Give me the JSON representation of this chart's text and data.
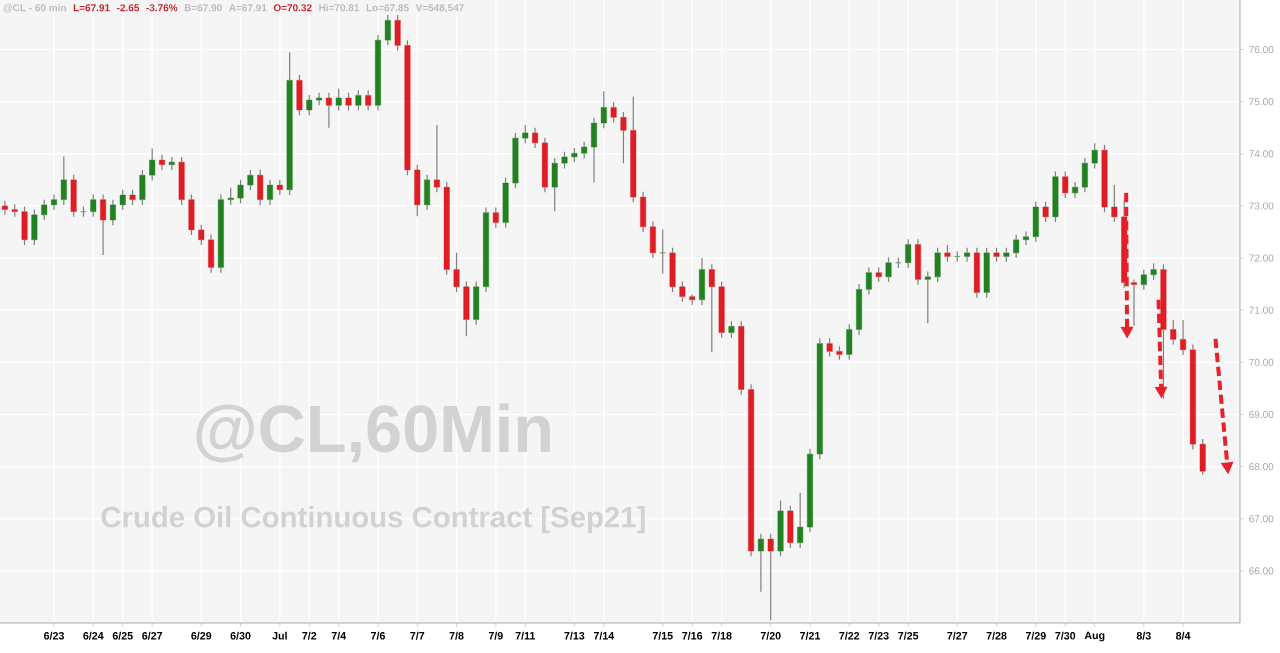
{
  "chart_data": {
    "type": "candlestick",
    "title": "@CL,60Min",
    "subtitle": "Crude Oil Continuous Contract [Sep21]",
    "annotations": [
      "@CL - 60 min",
      "L=67.91",
      "-2.65",
      "-3.76%",
      "B=67.90",
      "A=67.91",
      "O=70.32",
      "Hi=70.81",
      "Lo=67.85",
      "V=548,547"
    ],
    "categories": [
      null,
      null,
      null,
      null,
      null,
      "6/23",
      null,
      null,
      null,
      "6/24",
      null,
      null,
      "6/25",
      null,
      null,
      "6/27",
      null,
      null,
      null,
      null,
      "6/29",
      null,
      null,
      null,
      "6/30",
      null,
      null,
      null,
      "Jul",
      null,
      null,
      "7/2",
      null,
      null,
      "7/4",
      null,
      null,
      null,
      "7/6",
      null,
      null,
      null,
      "7/7",
      null,
      null,
      null,
      "7/8",
      null,
      null,
      null,
      "7/9",
      null,
      null,
      "7/11",
      null,
      null,
      null,
      null,
      "7/13",
      null,
      null,
      "7/14",
      null,
      null,
      null,
      null,
      null,
      "7/15",
      null,
      null,
      "7/16",
      null,
      null,
      "7/18",
      null,
      null,
      null,
      null,
      "7/20",
      null,
      null,
      null,
      "7/21",
      null,
      null,
      null,
      "7/22",
      null,
      null,
      "7/23",
      null,
      null,
      "7/25",
      null,
      null,
      null,
      null,
      "7/27",
      null,
      null,
      null,
      "7/28",
      null,
      null,
      null,
      "7/29",
      null,
      null,
      "7/30",
      null,
      null,
      "Aug",
      null,
      null,
      null,
      null,
      "8/3",
      null,
      null,
      null,
      "8/4",
      null,
      null
    ],
    "ohlc": [
      [
        73.0,
        73.1,
        72.83,
        72.93
      ],
      [
        72.93,
        73.03,
        72.79,
        72.89
      ],
      [
        72.89,
        72.99,
        72.25,
        72.35
      ],
      [
        72.35,
        72.93,
        72.25,
        72.83
      ],
      [
        72.83,
        73.12,
        72.73,
        73.02
      ],
      [
        73.02,
        73.22,
        72.92,
        73.12
      ],
      [
        73.12,
        73.95,
        73.02,
        73.5
      ],
      [
        73.5,
        73.6,
        72.79,
        72.89
      ],
      [
        72.89,
        72.99,
        72.79,
        72.89
      ],
      [
        72.89,
        73.22,
        72.79,
        73.12
      ],
      [
        73.12,
        73.22,
        72.06,
        72.73
      ],
      [
        72.73,
        73.12,
        72.63,
        73.02
      ],
      [
        73.02,
        73.31,
        72.92,
        73.21
      ],
      [
        73.21,
        73.31,
        73.02,
        73.12
      ],
      [
        73.12,
        73.69,
        73.02,
        73.59
      ],
      [
        73.59,
        74.1,
        73.49,
        73.88
      ],
      [
        73.88,
        73.98,
        73.69,
        73.79
      ],
      [
        73.79,
        73.94,
        73.69,
        73.84
      ],
      [
        73.84,
        73.94,
        73.02,
        73.12
      ],
      [
        73.12,
        73.22,
        72.44,
        72.54
      ],
      [
        72.54,
        72.64,
        72.25,
        72.35
      ],
      [
        72.35,
        72.45,
        71.72,
        71.82
      ],
      [
        71.82,
        73.22,
        71.72,
        73.12
      ],
      [
        73.12,
        73.35,
        73.02,
        73.15
      ],
      [
        73.15,
        73.5,
        73.05,
        73.4
      ],
      [
        73.4,
        73.69,
        73.3,
        73.59
      ],
      [
        73.59,
        73.69,
        73.02,
        73.12
      ],
      [
        73.12,
        73.5,
        73.02,
        73.4
      ],
      [
        73.4,
        73.5,
        73.21,
        73.31
      ],
      [
        73.31,
        75.95,
        73.21,
        75.41
      ],
      [
        75.41,
        75.51,
        74.74,
        74.84
      ],
      [
        74.84,
        75.13,
        74.74,
        75.03
      ],
      [
        75.03,
        75.17,
        74.93,
        75.07
      ],
      [
        75.07,
        75.17,
        74.5,
        74.93
      ],
      [
        74.93,
        75.25,
        74.83,
        75.07
      ],
      [
        75.07,
        75.17,
        74.83,
        74.93
      ],
      [
        74.93,
        75.22,
        74.83,
        75.12
      ],
      [
        75.12,
        75.22,
        74.83,
        74.93
      ],
      [
        74.93,
        76.28,
        74.83,
        76.18
      ],
      [
        76.18,
        76.66,
        76.08,
        76.56
      ],
      [
        76.56,
        76.66,
        75.98,
        76.08
      ],
      [
        76.08,
        76.18,
        73.59,
        73.69
      ],
      [
        73.69,
        73.79,
        72.8,
        73.02
      ],
      [
        73.02,
        73.6,
        72.92,
        73.5
      ],
      [
        73.5,
        74.55,
        73.26,
        73.36
      ],
      [
        73.36,
        73.46,
        71.68,
        71.78
      ],
      [
        71.78,
        72.1,
        71.35,
        71.45
      ],
      [
        71.45,
        71.55,
        70.5,
        70.82
      ],
      [
        70.82,
        71.55,
        70.72,
        71.45
      ],
      [
        71.45,
        72.97,
        71.35,
        72.87
      ],
      [
        72.87,
        72.97,
        72.58,
        72.68
      ],
      [
        72.68,
        73.54,
        72.58,
        73.44
      ],
      [
        73.44,
        74.4,
        73.34,
        74.3
      ],
      [
        74.3,
        74.55,
        74.2,
        74.4
      ],
      [
        74.4,
        74.5,
        74.11,
        74.21
      ],
      [
        74.21,
        74.31,
        73.26,
        73.36
      ],
      [
        73.36,
        73.92,
        72.9,
        73.82
      ],
      [
        73.82,
        74.04,
        73.72,
        73.94
      ],
      [
        73.94,
        74.11,
        73.84,
        74.01
      ],
      [
        74.01,
        74.23,
        73.91,
        74.13
      ],
      [
        74.13,
        74.69,
        73.45,
        74.59
      ],
      [
        74.59,
        75.2,
        74.49,
        74.89
      ],
      [
        74.89,
        74.99,
        74.6,
        74.7
      ],
      [
        74.7,
        74.8,
        73.82,
        74.45
      ],
      [
        74.45,
        75.1,
        73.07,
        73.17
      ],
      [
        73.17,
        73.27,
        72.5,
        72.6
      ],
      [
        72.6,
        72.7,
        72.0,
        72.1
      ],
      [
        72.1,
        72.55,
        71.7,
        72.1
      ],
      [
        72.1,
        72.2,
        71.35,
        71.45
      ],
      [
        71.45,
        71.55,
        71.16,
        71.26
      ],
      [
        71.26,
        71.3,
        71.1,
        71.2
      ],
      [
        71.2,
        72.0,
        71.1,
        71.78
      ],
      [
        71.78,
        71.88,
        70.2,
        71.45
      ],
      [
        71.45,
        71.55,
        70.47,
        70.57
      ],
      [
        70.57,
        70.79,
        70.47,
        70.69
      ],
      [
        70.69,
        70.79,
        69.38,
        69.48
      ],
      [
        69.48,
        69.58,
        66.28,
        66.38
      ],
      [
        66.38,
        66.71,
        65.6,
        66.61
      ],
      [
        66.61,
        66.71,
        65.05,
        66.38
      ],
      [
        66.38,
        67.35,
        66.28,
        67.15
      ],
      [
        67.15,
        67.25,
        66.44,
        66.54
      ],
      [
        66.54,
        67.5,
        66.44,
        66.84
      ],
      [
        66.84,
        68.34,
        66.74,
        68.24
      ],
      [
        68.24,
        70.46,
        68.14,
        70.36
      ],
      [
        70.36,
        70.46,
        70.11,
        70.21
      ],
      [
        70.21,
        70.31,
        70.05,
        70.15
      ],
      [
        70.15,
        70.73,
        70.05,
        70.63
      ],
      [
        70.63,
        71.5,
        70.53,
        71.4
      ],
      [
        71.4,
        71.82,
        71.3,
        71.72
      ],
      [
        71.72,
        71.82,
        71.54,
        71.64
      ],
      [
        71.64,
        72.01,
        71.54,
        71.91
      ],
      [
        71.91,
        72.01,
        71.81,
        71.91
      ],
      [
        71.91,
        72.36,
        71.81,
        72.26
      ],
      [
        72.26,
        72.36,
        71.49,
        71.59
      ],
      [
        71.59,
        71.74,
        70.75,
        71.64
      ],
      [
        71.64,
        72.2,
        71.54,
        72.1
      ],
      [
        72.1,
        72.25,
        71.93,
        72.03
      ],
      [
        72.03,
        72.13,
        71.93,
        72.03
      ],
      [
        72.03,
        72.2,
        71.93,
        72.1
      ],
      [
        72.1,
        72.2,
        71.24,
        71.34
      ],
      [
        71.34,
        72.2,
        71.24,
        72.1
      ],
      [
        72.1,
        72.2,
        71.93,
        72.03
      ],
      [
        72.03,
        72.2,
        71.93,
        72.1
      ],
      [
        72.1,
        72.45,
        72.0,
        72.35
      ],
      [
        72.35,
        72.51,
        72.25,
        72.41
      ],
      [
        72.41,
        73.08,
        72.31,
        72.98
      ],
      [
        72.98,
        73.08,
        72.69,
        72.79
      ],
      [
        72.79,
        73.66,
        72.69,
        73.56
      ],
      [
        73.56,
        73.66,
        73.15,
        73.25
      ],
      [
        73.25,
        73.46,
        73.15,
        73.36
      ],
      [
        73.36,
        73.92,
        73.26,
        73.82
      ],
      [
        73.82,
        74.2,
        73.72,
        74.07
      ],
      [
        74.07,
        74.17,
        72.88,
        72.98
      ],
      [
        72.98,
        73.4,
        72.69,
        72.79
      ],
      [
        72.79,
        73.1,
        71.43,
        71.53
      ],
      [
        71.53,
        71.59,
        70.7,
        71.49
      ],
      [
        71.49,
        71.78,
        71.39,
        71.68
      ],
      [
        71.68,
        71.9,
        71.58,
        71.78
      ],
      [
        71.78,
        71.88,
        69.3,
        70.63
      ],
      [
        70.63,
        70.81,
        70.34,
        70.44
      ],
      [
        70.44,
        70.81,
        70.14,
        70.24
      ],
      [
        70.24,
        70.34,
        68.33,
        68.43
      ],
      [
        68.43,
        68.53,
        67.85,
        67.91
      ]
    ],
    "ylim": [
      65,
      76.95
    ],
    "yticks": [
      {
        "value": 66,
        "label": "66.00"
      },
      {
        "value": 67,
        "label": "67.00"
      },
      {
        "value": 68,
        "label": "68.00"
      },
      {
        "value": 69,
        "label": "69.00"
      },
      {
        "value": 70,
        "label": "70.00"
      },
      {
        "value": 71,
        "label": "71.00"
      },
      {
        "value": 72,
        "label": "72.00"
      },
      {
        "value": 73,
        "label": "73.00"
      },
      {
        "value": 74,
        "label": "74.00"
      },
      {
        "value": 75,
        "label": "75.00"
      },
      {
        "value": 76,
        "label": "76.00"
      }
    ],
    "grid": true
  }
}
